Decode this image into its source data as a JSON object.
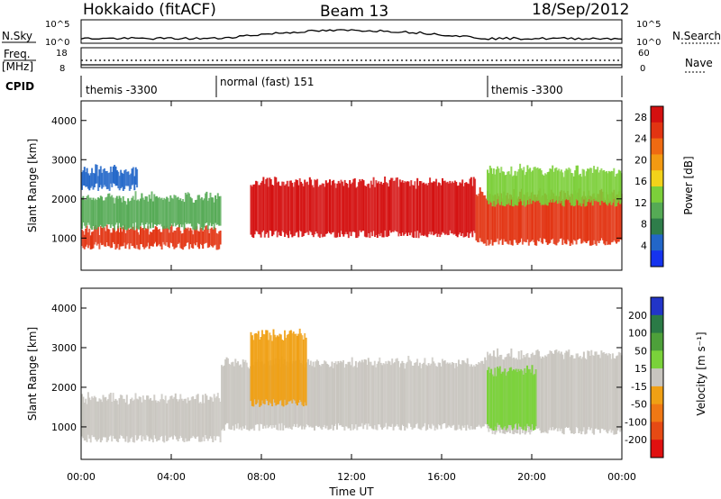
{
  "header": {
    "station": "Hokkaido (fitACF)",
    "beam": "Beam 13",
    "date": "18/Sep/2012"
  },
  "strip_labels": {
    "nsky": "N.Sky",
    "nsearch": "N.Search",
    "freq": "Freq.",
    "freq_unit": "[MHz]",
    "nave": "Nave",
    "cpid": "CPID"
  },
  "noise_ticks": {
    "left_top": "10^5",
    "left_bottom": "10^0",
    "right_top": "10^5",
    "right_bottom": "10^0"
  },
  "freq_ticks": {
    "left_top": "18",
    "left_bottom": "8",
    "right_top": "60",
    "right_bottom": "0"
  },
  "cpid_segments": [
    {
      "label": "themis -3300",
      "start_hour": 0
    },
    {
      "label": "normal (fast) 151",
      "start_hour": 6
    },
    {
      "label": "themis -3300",
      "start_hour": 18
    }
  ],
  "chart_data": [
    {
      "type": "heatmap",
      "name": "power-panel",
      "ylabel": "Slant Range [km]",
      "xlabel": "",
      "xlim_hours": [
        0,
        24
      ],
      "ylim_km": [
        180,
        4500
      ],
      "y_ticks": [
        1000,
        2000,
        3000,
        4000
      ],
      "colorbar": {
        "label": "Power [dB]",
        "ticks": [
          4,
          8,
          12,
          16,
          20,
          24,
          28
        ],
        "range": [
          0,
          30
        ],
        "colors": [
          "#1533ee",
          "#2266c8",
          "#2e7d4a",
          "#55aa55",
          "#7ccf3a",
          "#f3d21a",
          "#f39a12",
          "#ef6a12",
          "#e23412",
          "#d41010"
        ]
      },
      "echo_bands": [
        {
          "t_start": 0,
          "t_end": 6.2,
          "range_low": 800,
          "range_high": 1300,
          "level_db": 26
        },
        {
          "t_start": 0,
          "t_end": 6.2,
          "range_low": 1300,
          "range_high": 2100,
          "level_db": 10
        },
        {
          "t_start": 0,
          "t_end": 2.5,
          "range_low": 2300,
          "range_high": 2800,
          "level_db": 5
        },
        {
          "t_start": 7.5,
          "t_end": 17.5,
          "range_low": 1100,
          "range_high": 2500,
          "level_db": 27
        },
        {
          "t_start": 17.5,
          "t_end": 24,
          "range_low": 900,
          "range_high": 2200,
          "level_db": 25
        },
        {
          "t_start": 18,
          "t_end": 24,
          "range_low": 1900,
          "range_high": 2800,
          "level_db": 13
        }
      ]
    },
    {
      "type": "heatmap",
      "name": "velocity-panel",
      "ylabel": "Slant Range [km]",
      "xlabel": "Time UT",
      "xlim_hours": [
        0,
        24
      ],
      "x_ticks": [
        "00:00",
        "04:00",
        "08:00",
        "12:00",
        "16:00",
        "20:00",
        "00:00"
      ],
      "ylim_km": [
        180,
        4500
      ],
      "y_ticks": [
        1000,
        2000,
        3000,
        4000
      ],
      "colorbar": {
        "label": "Velocity [m s⁻¹]",
        "ticks": [
          "200",
          "100",
          "50",
          "15",
          "-15",
          "-50",
          "-100",
          "-200"
        ],
        "colors": [
          "#2235c8",
          "#2a7a46",
          "#4da03a",
          "#7ad23a",
          "#c8c5bf",
          "#f0a014",
          "#f07814",
          "#e64a14",
          "#e01010"
        ]
      },
      "echo_bands": [
        {
          "t_start": 0,
          "t_end": 6.2,
          "range_low": 700,
          "range_high": 1800,
          "class": "ground scatter"
        },
        {
          "t_start": 6.2,
          "t_end": 18,
          "range_low": 1000,
          "range_high": 2700,
          "class": "ground scatter"
        },
        {
          "t_start": 18,
          "t_end": 24,
          "range_low": 900,
          "range_high": 2900,
          "class": "ground scatter"
        },
        {
          "t_start": 18,
          "t_end": 20.2,
          "range_low": 1000,
          "range_high": 2500,
          "velocity": 30
        },
        {
          "t_start": 7.5,
          "t_end": 10,
          "range_low": 1600,
          "range_high": 3400,
          "velocity": -50
        }
      ]
    }
  ],
  "colors": {
    "frame": "#000000",
    "ground_scatter": "#c8c5bf",
    "background": "#ffffff"
  }
}
